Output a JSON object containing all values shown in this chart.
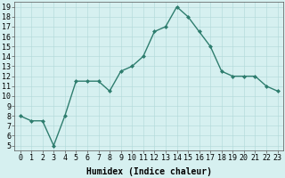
{
  "x": [
    0,
    1,
    2,
    3,
    4,
    5,
    6,
    7,
    8,
    9,
    10,
    11,
    12,
    13,
    14,
    15,
    16,
    17,
    18,
    19,
    20,
    21,
    22,
    23
  ],
  "y": [
    8.0,
    7.5,
    7.5,
    5.0,
    8.0,
    11.5,
    11.5,
    11.5,
    10.5,
    12.5,
    13.0,
    14.0,
    16.5,
    17.0,
    19.0,
    18.0,
    16.5,
    15.0,
    12.5,
    12.0,
    12.0,
    12.0,
    11.0,
    10.5
  ],
  "line_color": "#2e7d6e",
  "marker": "D",
  "marker_size": 2.0,
  "bg_color": "#d6f0f0",
  "grid_color": "#b0d8d8",
  "xlabel": "Humidex (Indice chaleur)",
  "xlabel_fontsize": 7,
  "xlim": [
    -0.5,
    23.5
  ],
  "ylim": [
    4.5,
    19.5
  ],
  "yticks": [
    5,
    6,
    7,
    8,
    9,
    10,
    11,
    12,
    13,
    14,
    15,
    16,
    17,
    18,
    19
  ],
  "xticks": [
    0,
    1,
    2,
    3,
    4,
    5,
    6,
    7,
    8,
    9,
    10,
    11,
    12,
    13,
    14,
    15,
    16,
    17,
    18,
    19,
    20,
    21,
    22,
    23
  ],
  "tick_fontsize": 6,
  "line_width": 1.0
}
